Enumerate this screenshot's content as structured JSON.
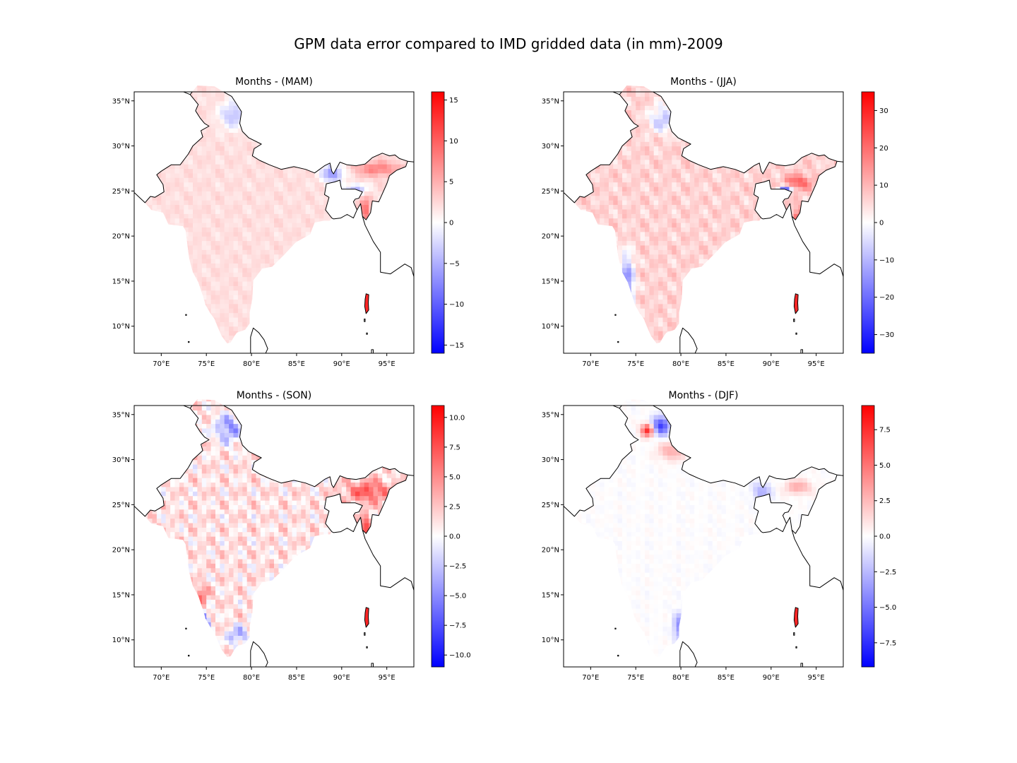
{
  "figure": {
    "title": "GPM data error compared to IMD gridded data (in mm)-2009"
  },
  "colormap": {
    "name": "bwr",
    "low": "#0000ff",
    "mid": "#ffffff",
    "high": "#ff0000",
    "land_outline": "#000000"
  },
  "chart_data": [
    {
      "type": "heatmap",
      "title": "Months - (MAM)",
      "xlim": [
        67,
        98
      ],
      "ylim": [
        7,
        36
      ],
      "x_ticks": [
        70,
        75,
        80,
        85,
        90,
        95
      ],
      "x_tick_labels": [
        "70°E",
        "75°E",
        "80°E",
        "85°E",
        "90°E",
        "95°E"
      ],
      "y_ticks": [
        10,
        15,
        20,
        25,
        30,
        35
      ],
      "y_tick_labels": [
        "10°N",
        "15°N",
        "20°N",
        "25°N",
        "30°N",
        "35°N"
      ],
      "colorbar": {
        "range": [
          -16,
          16
        ],
        "ticks": [
          -15,
          -10,
          -5,
          0,
          5,
          10,
          15
        ],
        "tick_labels": [
          "−15",
          "−10",
          "−5",
          "0",
          "5",
          "10",
          "15"
        ]
      },
      "data_pattern": "mostly weak positive error; negative patches over Kashmir and north-east"
    },
    {
      "type": "heatmap",
      "title": "Months - (JJA)",
      "xlim": [
        67,
        98
      ],
      "ylim": [
        7,
        36
      ],
      "x_ticks": [
        70,
        75,
        80,
        85,
        90,
        95
      ],
      "x_tick_labels": [
        "70°E",
        "75°E",
        "80°E",
        "85°E",
        "90°E",
        "95°E"
      ],
      "y_ticks": [
        10,
        15,
        20,
        25,
        30,
        35
      ],
      "y_tick_labels": [
        "10°N",
        "15°N",
        "20°N",
        "25°N",
        "30°N",
        "35°N"
      ],
      "colorbar": {
        "range": [
          -35,
          35
        ],
        "ticks": [
          -30,
          -20,
          -10,
          0,
          10,
          20,
          30
        ],
        "tick_labels": [
          "−30",
          "−20",
          "−10",
          "0",
          "10",
          "20",
          "30"
        ]
      },
      "data_pattern": "positive error over most of India; strong negative along the west coast and Meghalaya"
    },
    {
      "type": "heatmap",
      "title": "Months - (SON)",
      "xlim": [
        67,
        98
      ],
      "ylim": [
        7,
        36
      ],
      "x_ticks": [
        70,
        75,
        80,
        85,
        90,
        95
      ],
      "x_tick_labels": [
        "70°E",
        "75°E",
        "80°E",
        "85°E",
        "90°E",
        "95°E"
      ],
      "y_ticks": [
        10,
        15,
        20,
        25,
        30,
        35
      ],
      "y_tick_labels": [
        "10°N",
        "15°N",
        "20°N",
        "25°N",
        "30°N",
        "35°N"
      ],
      "colorbar": {
        "range": [
          -11,
          11
        ],
        "ticks": [
          -10,
          -7.5,
          -5,
          -2.5,
          0,
          2.5,
          5,
          7.5,
          10
        ],
        "tick_labels": [
          "−10.0",
          "−7.5",
          "−5.0",
          "−2.5",
          "0.0",
          "2.5",
          "5.0",
          "7.5",
          "10.0"
        ]
      },
      "data_pattern": "mixed positive and negative patches; negative over Kashmir and interior south"
    },
    {
      "type": "heatmap",
      "title": "Months - (DJF)",
      "xlim": [
        67,
        98
      ],
      "ylim": [
        7,
        36
      ],
      "x_ticks": [
        70,
        75,
        80,
        85,
        90,
        95
      ],
      "x_tick_labels": [
        "70°E",
        "75°E",
        "80°E",
        "85°E",
        "90°E",
        "95°E"
      ],
      "y_ticks": [
        10,
        15,
        20,
        25,
        30,
        35
      ],
      "y_tick_labels": [
        "10°N",
        "15°N",
        "20°N",
        "25°N",
        "30°N",
        "35°N"
      ],
      "colorbar": {
        "range": [
          -9.2,
          9.2
        ],
        "ticks": [
          -7.5,
          -5,
          -2.5,
          0,
          2.5,
          5,
          7.5
        ],
        "tick_labels": [
          "−7.5",
          "−5.0",
          "−2.5",
          "0.0",
          "2.5",
          "5.0",
          "7.5"
        ]
      },
      "data_pattern": "near zero almost everywhere; strong positive/negative band over Kashmir"
    }
  ]
}
